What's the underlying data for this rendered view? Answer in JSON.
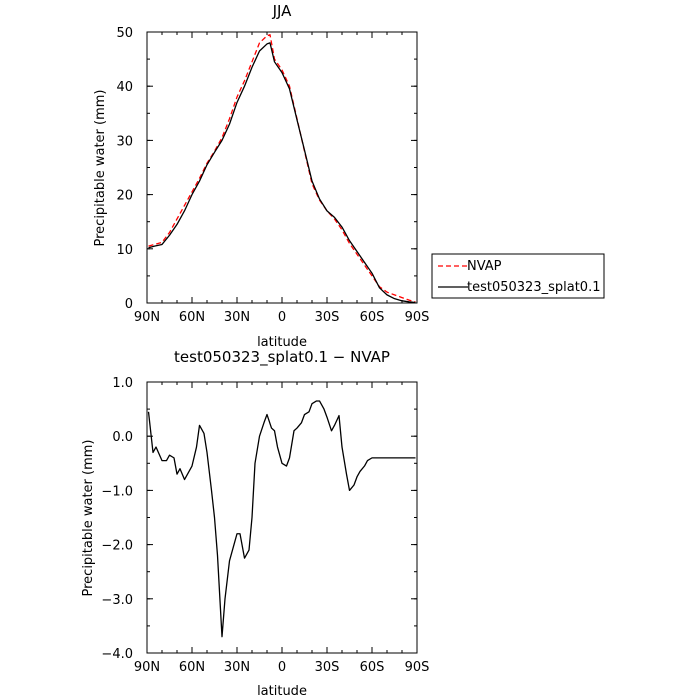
{
  "chart_data": [
    {
      "type": "line",
      "title": "JJA",
      "xlabel": "latitude",
      "ylabel": "Precipitable water (mm)",
      "xlim": [
        90,
        -90
      ],
      "ylim": [
        0,
        50
      ],
      "x_tick_values": [
        90,
        60,
        30,
        0,
        -30,
        -60,
        -90
      ],
      "x_tick_labels": [
        "90N",
        "60N",
        "30N",
        "0",
        "30S",
        "60S",
        "90S"
      ],
      "y_tick_values": [
        0,
        10,
        20,
        30,
        40,
        50
      ],
      "y_tick_labels": [
        "0",
        "10",
        "20",
        "30",
        "40",
        "50"
      ],
      "grid": false,
      "legend_position": "right",
      "series": [
        {
          "name": "NVAP",
          "color": "#ff0000",
          "dash": "dashed",
          "x": [
            89,
            85,
            80,
            75,
            70,
            65,
            60,
            55,
            50,
            45,
            40,
            35,
            30,
            25,
            20,
            15,
            10,
            8,
            5,
            0,
            -5,
            -10,
            -15,
            -20,
            -25,
            -30,
            -35,
            -40,
            -45,
            -50,
            -55,
            -60,
            -65,
            -70,
            -75,
            -80,
            -85,
            -89
          ],
          "y": [
            10.5,
            10.8,
            11.2,
            13.0,
            15.5,
            18.0,
            20.5,
            23.0,
            25.8,
            28.0,
            30.5,
            34.0,
            38.0,
            41.0,
            44.5,
            48.0,
            49.3,
            49.5,
            45.0,
            43.0,
            40.0,
            34.0,
            28.0,
            22.0,
            19.0,
            17.0,
            15.5,
            13.5,
            11.0,
            9.0,
            7.0,
            5.0,
            3.0,
            2.0,
            1.5,
            1.0,
            0.5,
            0.2
          ],
          "legend_label": "NVAP"
        },
        {
          "name": "test050323_splat0.1",
          "color": "#000000",
          "dash": "solid",
          "x": [
            89,
            85,
            80,
            75,
            70,
            65,
            60,
            55,
            50,
            45,
            40,
            35,
            30,
            25,
            20,
            15,
            10,
            8,
            5,
            0,
            -5,
            -10,
            -15,
            -20,
            -25,
            -30,
            -35,
            -40,
            -45,
            -50,
            -55,
            -60,
            -65,
            -70,
            -75,
            -80,
            -85,
            -89
          ],
          "y": [
            10.2,
            10.5,
            10.8,
            12.5,
            14.5,
            17.0,
            20.0,
            22.5,
            25.5,
            27.8,
            30.0,
            33.0,
            37.0,
            40.0,
            43.5,
            46.5,
            47.8,
            48.0,
            44.5,
            42.5,
            39.5,
            33.8,
            28.2,
            22.5,
            19.2,
            17.0,
            15.8,
            14.0,
            11.5,
            9.5,
            7.5,
            5.5,
            2.8,
            1.5,
            0.8,
            0.4,
            0.2,
            0.1
          ],
          "legend_label": "test050323_splat0.1"
        }
      ]
    },
    {
      "type": "line",
      "title": "test050323_splat0.1 − NVAP",
      "xlabel": "latitude",
      "ylabel": "Precipitable water (mm)",
      "xlim": [
        90,
        -90
      ],
      "ylim": [
        -4,
        1
      ],
      "x_tick_values": [
        90,
        60,
        30,
        0,
        -30,
        -60,
        -90
      ],
      "x_tick_labels": [
        "90N",
        "60N",
        "30N",
        "0",
        "30S",
        "60S",
        "90S"
      ],
      "y_tick_values": [
        1,
        0,
        -1,
        -2,
        -3,
        -4
      ],
      "y_tick_labels": [
        "1.0",
        "0.0",
        "−1.0",
        "−2.0",
        "−3.0",
        "−4.0"
      ],
      "grid": false,
      "series": [
        {
          "name": "test050323_splat0.1 − NVAP",
          "color": "#000000",
          "dash": "solid",
          "x": [
            89,
            86,
            84,
            80,
            77,
            75,
            72,
            70,
            68,
            65,
            63,
            60,
            57,
            55,
            52,
            50,
            47,
            45,
            43,
            40,
            38,
            35,
            32,
            30,
            28,
            25,
            22,
            20,
            18,
            15,
            12,
            10,
            7,
            5,
            3,
            0,
            -3,
            -5,
            -8,
            -10,
            -13,
            -15,
            -18,
            -20,
            -23,
            -25,
            -28,
            -30,
            -33,
            -35,
            -38,
            -40,
            -43,
            -45,
            -48,
            -50,
            -52,
            -55,
            -57,
            -60,
            -63,
            -65,
            -68,
            -70,
            -73,
            -75,
            -78,
            -80,
            -83,
            -85,
            -89
          ],
          "y": [
            0.45,
            -0.3,
            -0.2,
            -0.45,
            -0.45,
            -0.35,
            -0.4,
            -0.7,
            -0.6,
            -0.8,
            -0.7,
            -0.55,
            -0.2,
            0.2,
            0.05,
            -0.3,
            -1.0,
            -1.5,
            -2.2,
            -3.7,
            -3.0,
            -2.3,
            -2.0,
            -1.8,
            -1.8,
            -2.25,
            -2.1,
            -1.5,
            -0.5,
            0.0,
            0.25,
            0.4,
            0.15,
            0.1,
            -0.2,
            -0.5,
            -0.55,
            -0.4,
            0.1,
            0.15,
            0.25,
            0.4,
            0.45,
            0.6,
            0.65,
            0.65,
            0.5,
            0.35,
            0.1,
            0.2,
            0.38,
            -0.2,
            -0.7,
            -1.0,
            -0.9,
            -0.75,
            -0.65,
            -0.55,
            -0.45,
            -0.4,
            -0.4,
            -0.4,
            -0.4,
            -0.4,
            -0.4,
            -0.4,
            -0.4,
            -0.4,
            -0.4,
            -0.4,
            -0.4
          ]
        }
      ]
    }
  ]
}
